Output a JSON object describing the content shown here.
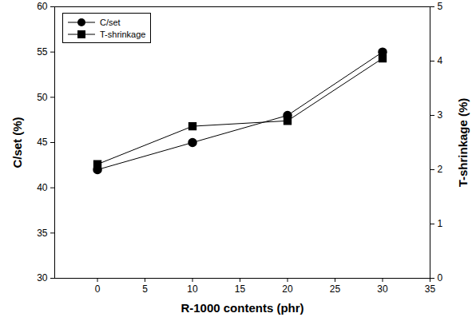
{
  "chart_data": {
    "type": "line",
    "x_label": "R-1000 contents (phr)",
    "y_label": "C/set (%)",
    "y2_label": "T-shrinkage (%)",
    "x": [
      0,
      10,
      20,
      30
    ],
    "xlim": [
      -4.5,
      35
    ],
    "xticks": [
      0,
      5,
      10,
      15,
      20,
      25,
      30,
      35
    ],
    "ylim": [
      30,
      60
    ],
    "yticks": [
      30,
      35,
      40,
      45,
      50,
      55,
      60
    ],
    "y2lim": [
      0,
      5
    ],
    "y2ticks": [
      0,
      1,
      2,
      3,
      4,
      5
    ],
    "grid": false,
    "legend": "upper left",
    "series": [
      {
        "name": "C/set",
        "color": "#000000",
        "marker": "circle",
        "line_style": "solid",
        "values": [
          42,
          45,
          48,
          55
        ]
      },
      {
        "name": "T-shrinkage",
        "color": "#000000",
        "marker": "square",
        "line_style": "solid",
        "axis": "y2",
        "values": [
          2.1,
          2.8,
          2.9,
          4.05
        ]
      }
    ]
  }
}
